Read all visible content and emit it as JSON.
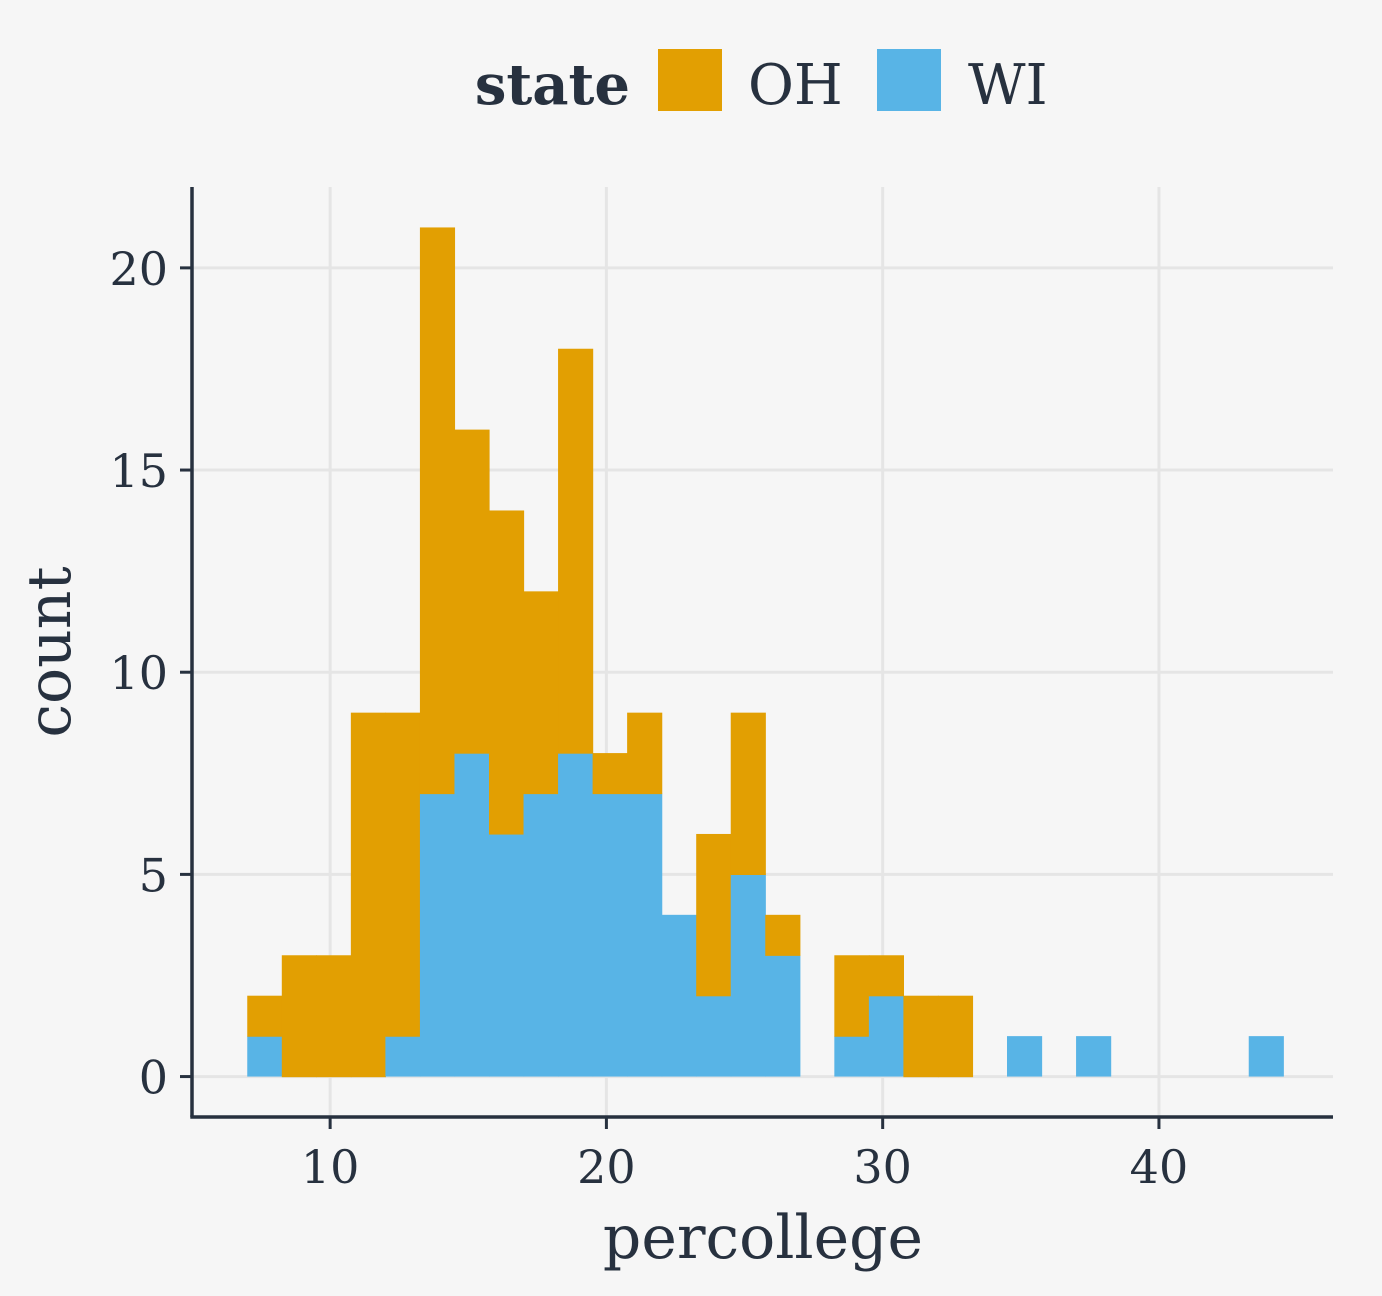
{
  "chart_data": {
    "type": "bar",
    "subtype": "stacked-histogram",
    "title": "",
    "xlabel": "percollege",
    "ylabel": "count",
    "xlim": [
      5.0,
      46.3
    ],
    "ylim": [
      -1.0,
      22.0
    ],
    "x_ticks": [
      10,
      20,
      30,
      40
    ],
    "y_ticks": [
      0,
      5,
      10,
      15,
      20
    ],
    "grid": true,
    "legend": {
      "title": "state",
      "position": "top",
      "entries": [
        {
          "name": "OH",
          "color": "#e29f02"
        },
        {
          "name": "WI",
          "color": "#58b4e6"
        }
      ]
    },
    "bins": [
      {
        "x0": 7.0,
        "x1": 8.25
      },
      {
        "x0": 8.25,
        "x1": 9.5
      },
      {
        "x0": 9.5,
        "x1": 10.75
      },
      {
        "x0": 10.75,
        "x1": 12.0
      },
      {
        "x0": 12.0,
        "x1": 13.25
      },
      {
        "x0": 13.25,
        "x1": 14.5
      },
      {
        "x0": 14.5,
        "x1": 15.75
      },
      {
        "x0": 15.75,
        "x1": 17.0
      },
      {
        "x0": 17.0,
        "x1": 18.25
      },
      {
        "x0": 18.25,
        "x1": 19.5
      },
      {
        "x0": 19.5,
        "x1": 20.75
      },
      {
        "x0": 20.75,
        "x1": 22.0
      },
      {
        "x0": 22.0,
        "x1": 23.25
      },
      {
        "x0": 23.25,
        "x1": 24.5
      },
      {
        "x0": 24.5,
        "x1": 25.75
      },
      {
        "x0": 25.75,
        "x1": 27.0
      },
      {
        "x0": 27.0,
        "x1": 28.25
      },
      {
        "x0": 28.25,
        "x1": 29.5
      },
      {
        "x0": 29.5,
        "x1": 30.75
      },
      {
        "x0": 30.75,
        "x1": 32.0
      },
      {
        "x0": 32.0,
        "x1": 33.25
      },
      {
        "x0": 33.25,
        "x1": 34.5
      },
      {
        "x0": 34.5,
        "x1": 35.75
      },
      {
        "x0": 35.75,
        "x1": 37.0
      },
      {
        "x0": 37.0,
        "x1": 38.25
      },
      {
        "x0": 38.25,
        "x1": 39.5
      },
      {
        "x0": 39.5,
        "x1": 40.75
      },
      {
        "x0": 40.75,
        "x1": 42.0
      },
      {
        "x0": 42.0,
        "x1": 43.25
      },
      {
        "x0": 43.25,
        "x1": 44.5
      }
    ],
    "series": [
      {
        "name": "WI",
        "color": "#58b4e6",
        "values": [
          1,
          0,
          0,
          0,
          1,
          7,
          8,
          6,
          7,
          8,
          7,
          7,
          4,
          2,
          5,
          3,
          0,
          1,
          2,
          0,
          0,
          0,
          1,
          0,
          1,
          0,
          0,
          0,
          0,
          1
        ]
      },
      {
        "name": "OH",
        "color": "#e29f02",
        "values": [
          1,
          3,
          3,
          9,
          8,
          14,
          8,
          8,
          5,
          10,
          1,
          2,
          0,
          4,
          4,
          1,
          0,
          2,
          1,
          2,
          2,
          0,
          0,
          0,
          0,
          0,
          0,
          0,
          0,
          0
        ]
      }
    ]
  }
}
